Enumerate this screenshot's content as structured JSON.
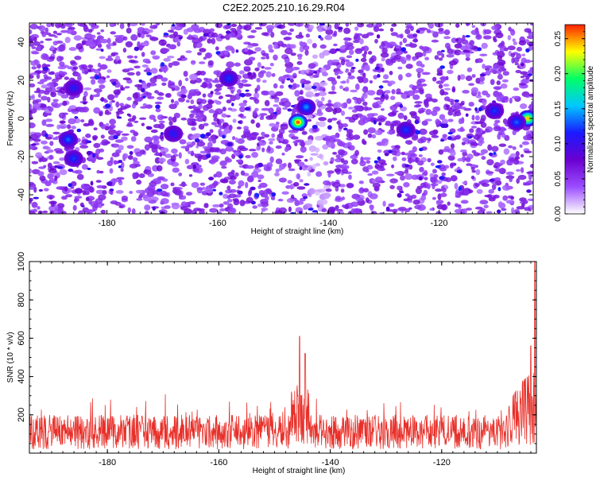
{
  "title": "C2E2.2025.210.16.29.R04",
  "chart_data": [
    {
      "type": "heatmap",
      "xlabel": "Height of straight line (km)",
      "ylabel": "Frequency (Hz)",
      "xlim": [
        -194,
        -103
      ],
      "ylim": [
        -50,
        50
      ],
      "xticks": [
        "-180",
        "-160",
        "-140",
        "-120"
      ],
      "xtick_values": [
        -180,
        -160,
        -140,
        -120
      ],
      "yticks": [
        "40",
        "20",
        "0",
        "-20",
        "-40"
      ],
      "ytick_values": [
        40,
        20,
        0,
        -20,
        -40
      ],
      "colorbar": {
        "label": "Normalized spectral amplitude",
        "range": [
          0,
          0.27
        ],
        "ticks": [
          "0.00",
          "0.05",
          "0.10",
          "0.15",
          "0.20",
          "0.25"
        ],
        "tick_values": [
          0,
          0.05,
          0.1,
          0.15,
          0.2,
          0.25
        ],
        "colormap": [
          "#ffffff",
          "#9b4dff",
          "#6a00d0",
          "#1a1aff",
          "#00c8ff",
          "#00ff66",
          "#ffff00",
          "#ff2000"
        ]
      },
      "hotspots": [
        {
          "x": -145.5,
          "y": -2,
          "value": 0.26
        },
        {
          "x": -144,
          "y": 6,
          "value": 0.14
        },
        {
          "x": -104,
          "y": 0,
          "value": 0.24
        },
        {
          "x": -106,
          "y": -2,
          "value": 0.13
        },
        {
          "x": -110,
          "y": 4,
          "value": 0.12
        },
        {
          "x": -158,
          "y": 21,
          "value": 0.12
        },
        {
          "x": -186,
          "y": 16,
          "value": 0.11
        },
        {
          "x": -187,
          "y": -11,
          "value": 0.13
        },
        {
          "x": -126,
          "y": -6,
          "value": 0.12
        },
        {
          "x": -186,
          "y": -21,
          "value": 0.12
        },
        {
          "x": -168,
          "y": -8,
          "value": 0.11
        }
      ]
    },
    {
      "type": "line",
      "xlabel": "Height of straight line (km)",
      "ylabel": "SNR (10 * v/v)",
      "xlim": [
        -194,
        -103
      ],
      "ylim": [
        0,
        1000
      ],
      "xticks": [
        "-180",
        "-160",
        "-140",
        "-120"
      ],
      "xtick_values": [
        -180,
        -160,
        -140,
        -120
      ],
      "yticks": [
        "1000",
        "800",
        "600",
        "400",
        "200"
      ],
      "ytick_values": [
        1000,
        800,
        600,
        400,
        200
      ],
      "series": [
        {
          "color": "#e8302a",
          "baseline_mean": 140,
          "baseline_spread": 180,
          "peaks": [
            {
              "x": -145.5,
              "y": 610
            },
            {
              "x": -144.5,
              "y": 520
            },
            {
              "x": -104,
              "y": 560
            },
            {
              "x": -103.3,
              "y": 1000
            }
          ]
        }
      ]
    }
  ]
}
